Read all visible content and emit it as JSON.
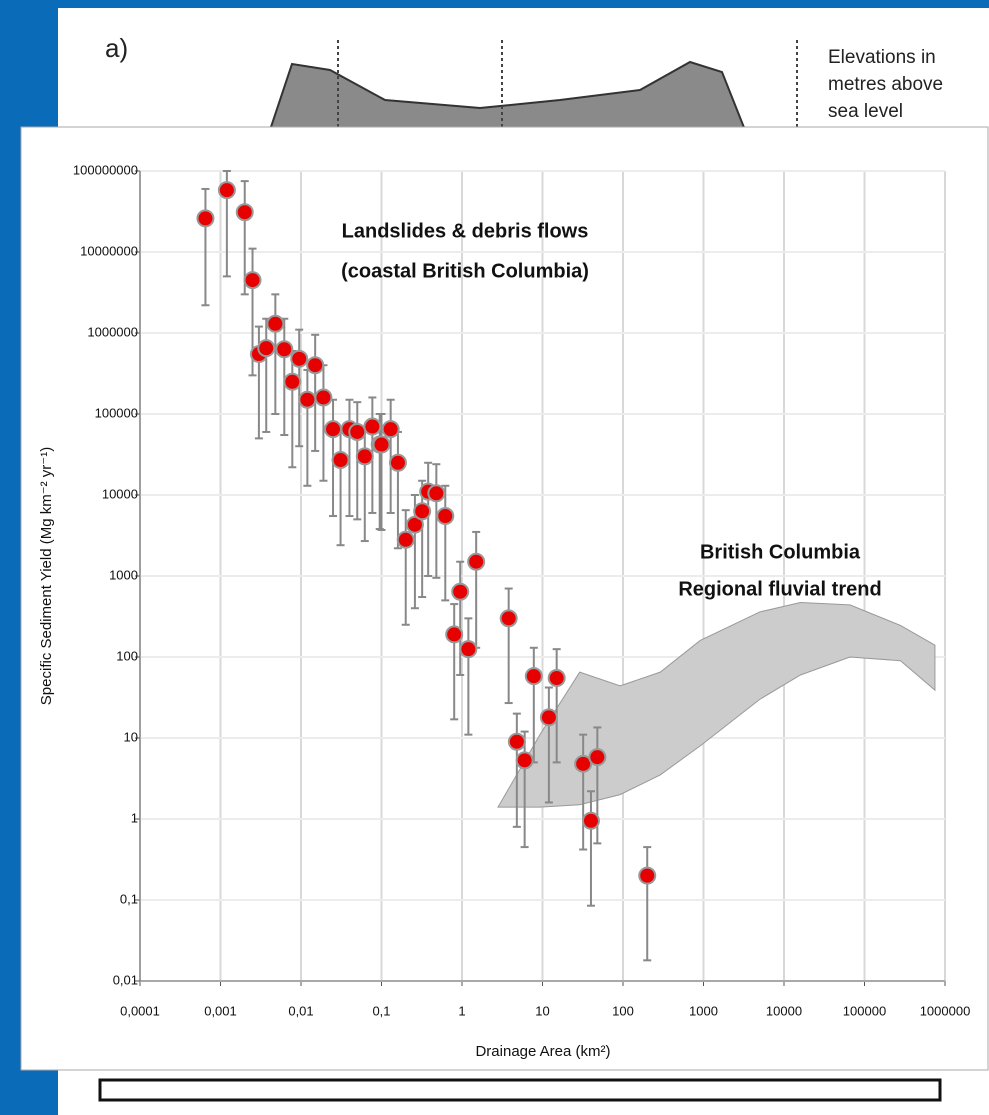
{
  "panel_a": {
    "label": "a)",
    "legend": [
      "Elevations in",
      "metres above",
      "sea level"
    ]
  },
  "chart_data": {
    "type": "scatter",
    "xscale": "log",
    "yscale": "log",
    "grid": true,
    "x_label": "Drainage Area (km²)",
    "y_label": "Specific Sediment Yield (Mg km⁻² yr⁻¹)",
    "annotations": [
      "Landslides & debris flows",
      "(coastal British Columbia)",
      "British Columbia",
      "Regional fluvial trend"
    ],
    "xlim": [
      0.0001,
      1000000
    ],
    "ylim": [
      0.01,
      100000000
    ],
    "xticks": [
      {
        "value": 0.0001,
        "label": "0,0001"
      },
      {
        "value": 0.001,
        "label": "0,001"
      },
      {
        "value": 0.01,
        "label": "0,01"
      },
      {
        "value": 0.1,
        "label": "0,1"
      },
      1,
      10,
      100,
      1000,
      10000,
      100000,
      1000000
    ],
    "yticks": [
      {
        "value": 0.01,
        "label": "0,01"
      },
      {
        "value": 0.1,
        "label": "0,1"
      },
      1,
      10,
      100,
      1000,
      10000,
      100000,
      1000000,
      10000000,
      100000000
    ],
    "series": [
      {
        "color": "#e60000",
        "x": [
          0.00065,
          0.0012,
          0.002,
          0.0025,
          0.003,
          0.0037,
          0.0048,
          0.0062,
          0.0078,
          0.0095,
          0.012,
          0.015,
          0.019,
          0.025,
          0.031,
          0.04,
          0.05,
          0.062,
          0.077,
          0.095,
          0.1,
          0.13,
          0.16,
          0.2,
          0.26,
          0.32,
          0.38,
          0.48,
          0.62,
          0.8,
          0.95,
          1.2,
          1.5,
          3.8,
          4.8,
          6,
          7.8,
          12,
          15,
          32,
          40,
          48,
          200
        ],
        "values": [
          26000000,
          58000000,
          31000000,
          4500000,
          550000,
          650000,
          1300000,
          630000,
          250000,
          480000,
          150000,
          400000,
          160000,
          65000,
          27000,
          65000,
          60000,
          30000,
          70000,
          42000,
          42000,
          65000,
          25000,
          2800,
          4300,
          6300,
          11000,
          10500,
          5500,
          190,
          640,
          125,
          1500,
          300,
          9,
          5.3,
          58,
          18,
          55,
          4.8,
          0.95,
          5.8,
          0.2
        ],
        "lower": [
          2200000,
          5000000,
          3000000,
          300000,
          50000,
          60000,
          100000,
          55000,
          22000,
          40000,
          13000,
          35000,
          15000,
          5500,
          2400,
          5500,
          5000,
          2700,
          6000,
          3800,
          3700,
          6000,
          2200,
          250,
          400,
          550,
          1000,
          950,
          500,
          17,
          60,
          11,
          130,
          27,
          0.8,
          0.45,
          5,
          1.6,
          5,
          0.42,
          0.085,
          0.5,
          0.018
        ],
        "upper": [
          60000000,
          100000000,
          75000000,
          11000000,
          1200000,
          1500000,
          3000000,
          1500000,
          600000,
          1100000,
          350000,
          950000,
          400000,
          150000,
          65000,
          150000,
          140000,
          70000,
          160000,
          100000,
          100000,
          150000,
          60000,
          6500,
          10000,
          15000,
          25000,
          24000,
          13000,
          450,
          1500,
          300,
          3500,
          700,
          20,
          12,
          130,
          42,
          125,
          11,
          2.2,
          13.5,
          0.45
        ]
      }
    ],
    "band": {
      "color": "#cccccc",
      "x": [
        2.8,
        9.3,
        29,
        92,
        290,
        910,
        5000,
        16000,
        66000,
        280000,
        750000
      ],
      "upper": [
        1.4,
        11,
        65,
        44,
        65,
        160,
        360,
        470,
        440,
        245,
        140
      ],
      "lower": [
        1.4,
        1.4,
        1.5,
        2,
        3.5,
        8,
        30,
        60,
        100,
        90,
        39
      ]
    }
  }
}
